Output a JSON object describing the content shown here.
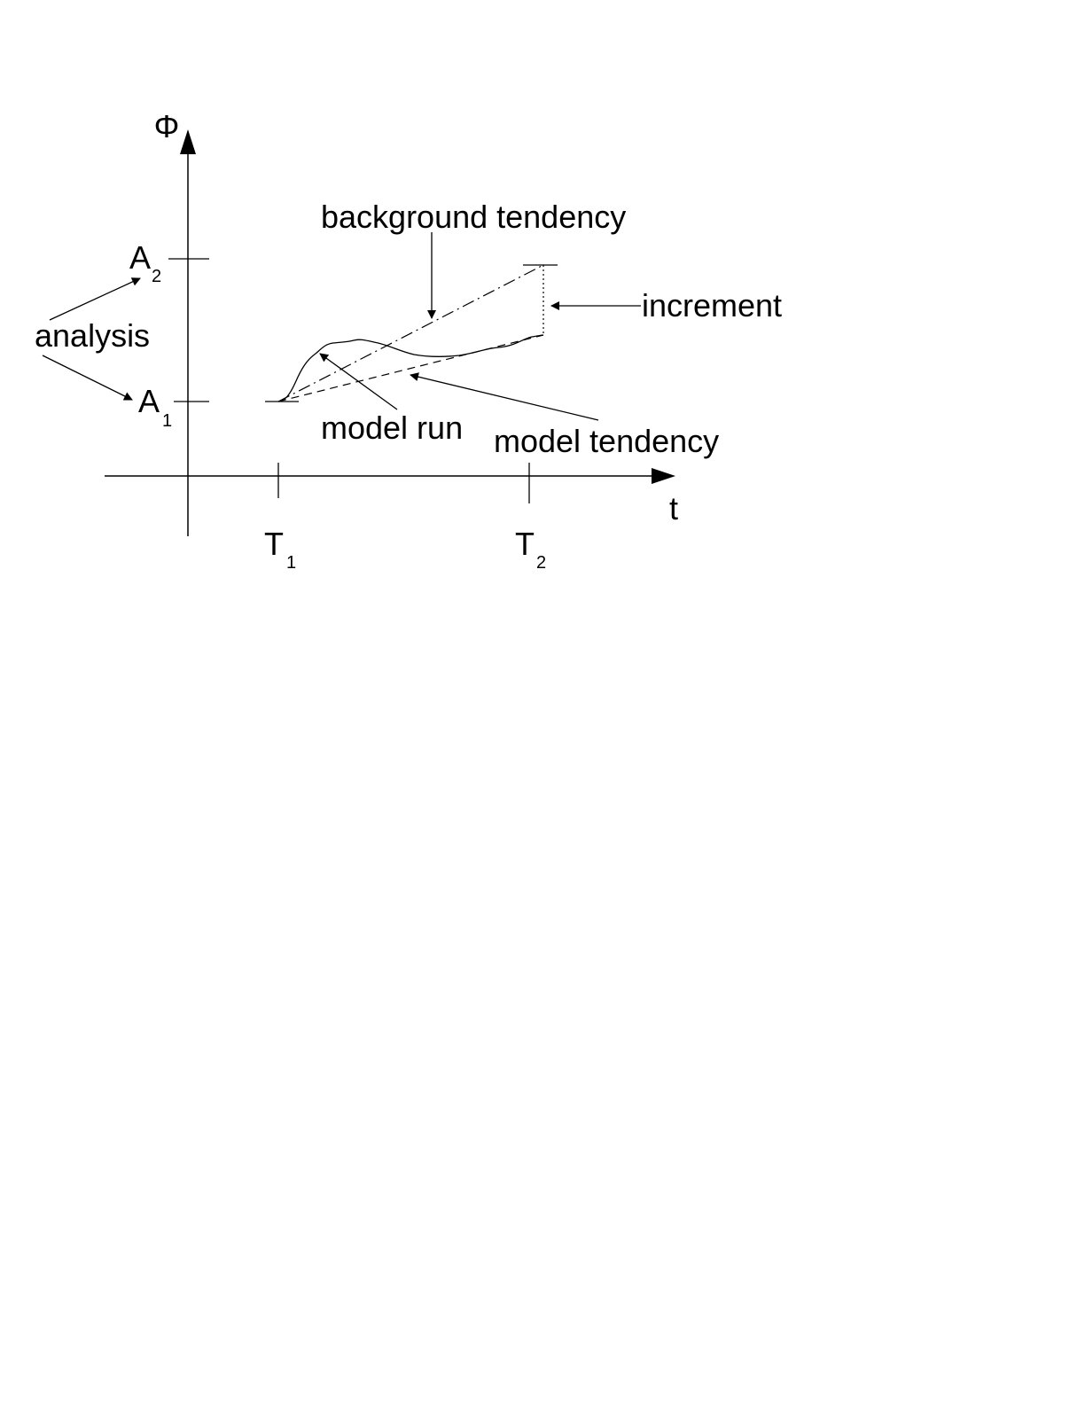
{
  "axes": {
    "y_label": "Φ",
    "x_label": "t"
  },
  "ticks": {
    "a1": {
      "base": "A",
      "sub": "1"
    },
    "a2": {
      "base": "A",
      "sub": "2"
    },
    "t1": {
      "base": "T",
      "sub": "1"
    },
    "t2": {
      "base": "T",
      "sub": "2"
    }
  },
  "labels": {
    "analysis": "analysis",
    "background_tendency": "background tendency",
    "increment": "increment",
    "model_run": "model run",
    "model_tendency": "model tendency"
  },
  "colors": {
    "ink": "#000000",
    "background": "#ffffff"
  }
}
